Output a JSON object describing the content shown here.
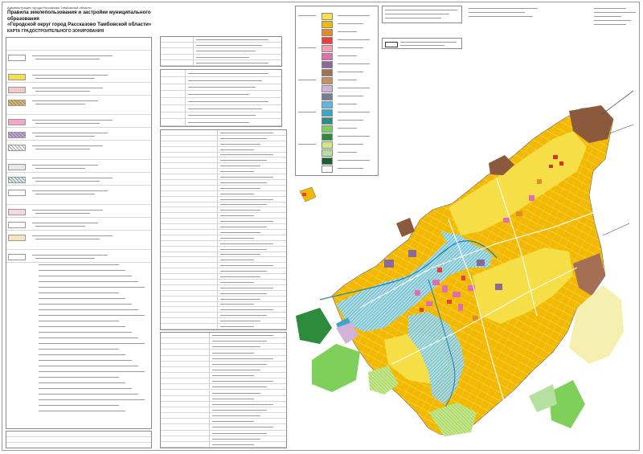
{
  "header": {
    "admin": "Администрация города Рассказово Тамбовской области",
    "title_line1": "Правила землепользования и застройки муниципального образования",
    "title_line2": "«Городской округ город Рассказово Тамбовской области»",
    "subtitle": "КАРТА ГРАДОСТРОИТЕЛЬНОГО ЗОНИРОВАНИЯ"
  },
  "colors": {
    "residential_low": "#f6e04a",
    "residential_mid": "#f2b900",
    "public": "#e06fb0",
    "industrial": "#8a6a9a",
    "water_hatch": "#3aa7c9",
    "green": "#7fd05a",
    "dark_green": "#2e8b3c",
    "agri": "#cfe88a",
    "special": "#8b5a3c",
    "road": "#ffffff",
    "river": "#5ab7e0"
  },
  "legend_left": [
    {
      "color": "#ffffff",
      "hatch": ""
    },
    {
      "color": "#f6e04a",
      "hatch": ""
    },
    {
      "color": "#f2c7c7",
      "hatch": ""
    },
    {
      "color": "#e9b86a",
      "hatch": "lines"
    },
    {
      "color": "#f4a6c8",
      "hatch": ""
    },
    {
      "color": "#c8a7e0",
      "hatch": "lines"
    },
    {
      "color": "#ffffff",
      "hatch": "lines"
    },
    {
      "color": "#e8e8e8",
      "hatch": ""
    },
    {
      "color": "#d8f0f8",
      "hatch": "lines"
    },
    {
      "color": "#ffffff",
      "hatch": ""
    },
    {
      "color": "#f7d7e3",
      "hatch": ""
    },
    {
      "color": "#ffffff",
      "hatch": ""
    },
    {
      "color": "#f9e3c0",
      "hatch": ""
    },
    {
      "color": "#ffffff",
      "hatch": ""
    }
  ],
  "legend_right": [
    {
      "color": "#f6e04a"
    },
    {
      "color": "#f2b900"
    },
    {
      "color": "#e58a2a"
    },
    {
      "color": "#e8413a"
    },
    {
      "color": "#f59bb5"
    },
    {
      "color": "#e06fb0"
    },
    {
      "color": "#8a6a9a"
    },
    {
      "color": "#a56f55"
    },
    {
      "color": "#c98f60"
    },
    {
      "color": "#d3b2d8"
    },
    {
      "color": "#7a7a9c"
    },
    {
      "color": "#5ab7e0"
    },
    {
      "color": "#3aa7c9"
    },
    {
      "color": "#2f8c8c"
    },
    {
      "color": "#7fd05a"
    },
    {
      "color": "#2e8b3c"
    },
    {
      "color": "#cfe88a"
    },
    {
      "color": "#b6e0a0"
    },
    {
      "color": "#1f5f2f"
    },
    {
      "color": "#ffffff"
    }
  ]
}
